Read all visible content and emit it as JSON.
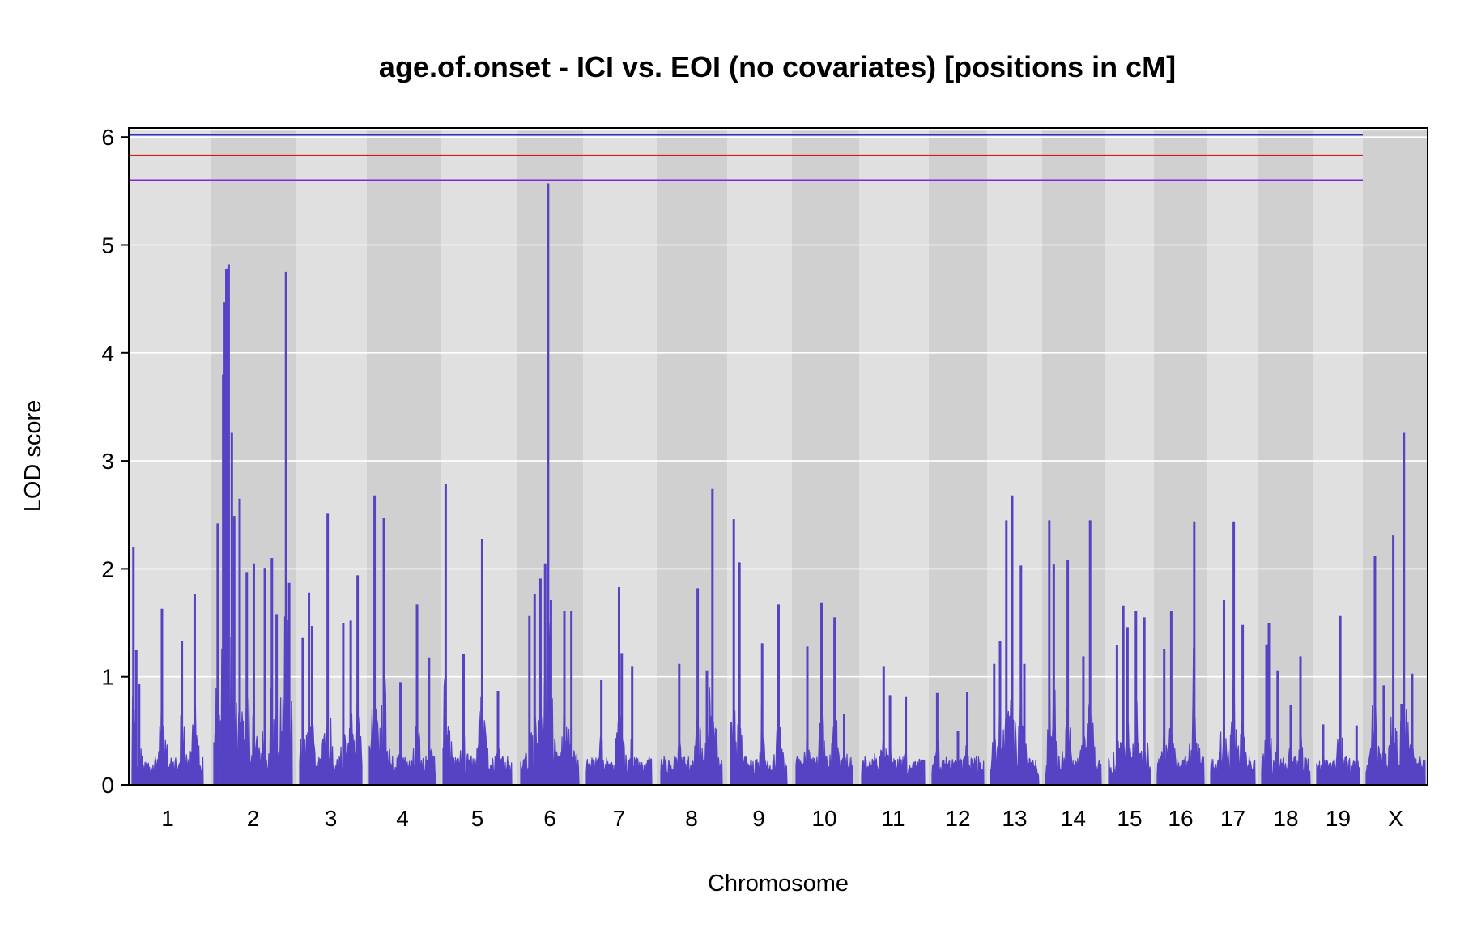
{
  "chart_data": {
    "type": "line",
    "title": "age.of.onset - ICI vs. EOI (no covariates) [positions in cM]",
    "xlabel": "Chromosome",
    "ylabel": "LOD score",
    "ylim": [
      0,
      6.06
    ],
    "yticks": [
      "0",
      "1",
      "2",
      "3",
      "4",
      "5",
      "6"
    ],
    "grid": true,
    "colors": {
      "lod_line": "#5543c4",
      "band_light": "#e0e0e0",
      "band_dark": "#d0d0d0",
      "threshold_blue": "#2e2ec8",
      "threshold_red": "#d11b1b",
      "threshold_purple": "#8c22d8"
    },
    "thresholds": [
      {
        "color": "#2e2ec8",
        "lod": 6.02
      },
      {
        "color": "#d11b1b",
        "lod": 5.83
      },
      {
        "color": "#8c22d8",
        "lod": 5.6
      }
    ],
    "chromosomes": [
      {
        "label": "1",
        "peaks": [
          [
            0.02,
            2.2
          ],
          [
            0.06,
            1.25
          ],
          [
            0.1,
            0.93
          ],
          [
            0.42,
            1.63
          ],
          [
            0.7,
            1.33
          ],
          [
            0.88,
            1.77
          ]
        ]
      },
      {
        "label": "2",
        "peaks": [
          [
            0.05,
            2.42
          ],
          [
            0.12,
            3.8
          ],
          [
            0.14,
            4.47
          ],
          [
            0.16,
            4.78
          ],
          [
            0.19,
            4.82
          ],
          [
            0.23,
            3.26
          ],
          [
            0.26,
            2.49
          ],
          [
            0.33,
            2.65
          ],
          [
            0.42,
            1.97
          ],
          [
            0.51,
            2.05
          ],
          [
            0.65,
            2.01
          ],
          [
            0.74,
            2.1
          ],
          [
            0.8,
            1.58
          ],
          [
            0.92,
            4.75
          ],
          [
            0.96,
            1.87
          ]
        ]
      },
      {
        "label": "3",
        "peaks": [
          [
            0.05,
            1.36
          ],
          [
            0.15,
            1.78
          ],
          [
            0.2,
            1.47
          ],
          [
            0.45,
            2.51
          ],
          [
            0.7,
            1.5
          ],
          [
            0.82,
            1.52
          ],
          [
            0.93,
            1.94
          ]
        ]
      },
      {
        "label": "4",
        "peaks": [
          [
            0.08,
            2.68
          ],
          [
            0.22,
            2.47
          ],
          [
            0.47,
            0.95
          ],
          [
            0.72,
            1.67
          ],
          [
            0.9,
            1.18
          ]
        ]
      },
      {
        "label": "5",
        "peaks": [
          [
            0.04,
            2.79
          ],
          [
            0.3,
            1.21
          ],
          [
            0.57,
            2.28
          ],
          [
            0.8,
            0.87
          ]
        ]
      },
      {
        "label": "6",
        "peaks": [
          [
            0.15,
            1.57
          ],
          [
            0.24,
            1.77
          ],
          [
            0.34,
            1.91
          ],
          [
            0.42,
            2.05
          ],
          [
            0.47,
            5.57
          ],
          [
            0.52,
            1.71
          ],
          [
            0.75,
            1.61
          ],
          [
            0.87,
            1.61
          ]
        ]
      },
      {
        "label": "7",
        "peaks": [
          [
            0.23,
            0.97
          ],
          [
            0.5,
            1.83
          ],
          [
            0.54,
            1.22
          ],
          [
            0.7,
            1.1
          ]
        ]
      },
      {
        "label": "8",
        "peaks": [
          [
            0.3,
            1.12
          ],
          [
            0.6,
            1.82
          ],
          [
            0.75,
            1.06
          ],
          [
            0.84,
            2.74
          ]
        ]
      },
      {
        "label": "9",
        "peaks": [
          [
            0.06,
            2.46
          ],
          [
            0.16,
            2.06
          ],
          [
            0.56,
            1.31
          ],
          [
            0.85,
            1.67
          ]
        ]
      },
      {
        "label": "10",
        "peaks": [
          [
            0.2,
            1.28
          ],
          [
            0.45,
            1.69
          ],
          [
            0.68,
            1.55
          ],
          [
            0.85,
            0.66
          ]
        ]
      },
      {
        "label": "11",
        "peaks": [
          [
            0.35,
            1.1
          ],
          [
            0.45,
            0.83
          ],
          [
            0.7,
            0.82
          ]
        ]
      },
      {
        "label": "12",
        "peaks": [
          [
            0.1,
            0.85
          ],
          [
            0.5,
            0.5
          ],
          [
            0.68,
            0.86
          ]
        ]
      },
      {
        "label": "13",
        "peaks": [
          [
            0.08,
            1.12
          ],
          [
            0.2,
            1.33
          ],
          [
            0.33,
            2.45
          ],
          [
            0.45,
            2.68
          ],
          [
            0.63,
            2.03
          ],
          [
            0.7,
            1.12
          ]
        ]
      },
      {
        "label": "14",
        "peaks": [
          [
            0.07,
            2.45
          ],
          [
            0.15,
            2.04
          ],
          [
            0.4,
            2.08
          ],
          [
            0.68,
            1.19
          ],
          [
            0.8,
            2.45
          ]
        ]
      },
      {
        "label": "15",
        "peaks": [
          [
            0.2,
            1.29
          ],
          [
            0.35,
            1.66
          ],
          [
            0.45,
            1.46
          ],
          [
            0.65,
            1.61
          ],
          [
            0.85,
            1.55
          ]
        ]
      },
      {
        "label": "16",
        "peaks": [
          [
            0.15,
            1.26
          ],
          [
            0.3,
            1.61
          ],
          [
            0.79,
            2.44
          ]
        ]
      },
      {
        "label": "17",
        "peaks": [
          [
            0.3,
            1.71
          ],
          [
            0.52,
            2.44
          ],
          [
            0.72,
            1.48
          ]
        ]
      },
      {
        "label": "18",
        "peaks": [
          [
            0.1,
            1.3
          ],
          [
            0.15,
            1.5
          ],
          [
            0.33,
            1.06
          ],
          [
            0.6,
            0.74
          ],
          [
            0.8,
            1.19
          ]
        ]
      },
      {
        "label": "19",
        "peaks": [
          [
            0.15,
            0.56
          ],
          [
            0.55,
            1.57
          ],
          [
            0.93,
            0.55
          ]
        ]
      },
      {
        "label": "X",
        "peaks": [
          [
            0.15,
            2.12
          ],
          [
            0.3,
            0.92
          ],
          [
            0.46,
            2.31
          ],
          [
            0.6,
            0.75
          ],
          [
            0.64,
            3.26
          ],
          [
            0.78,
            1.03
          ]
        ]
      }
    ]
  }
}
